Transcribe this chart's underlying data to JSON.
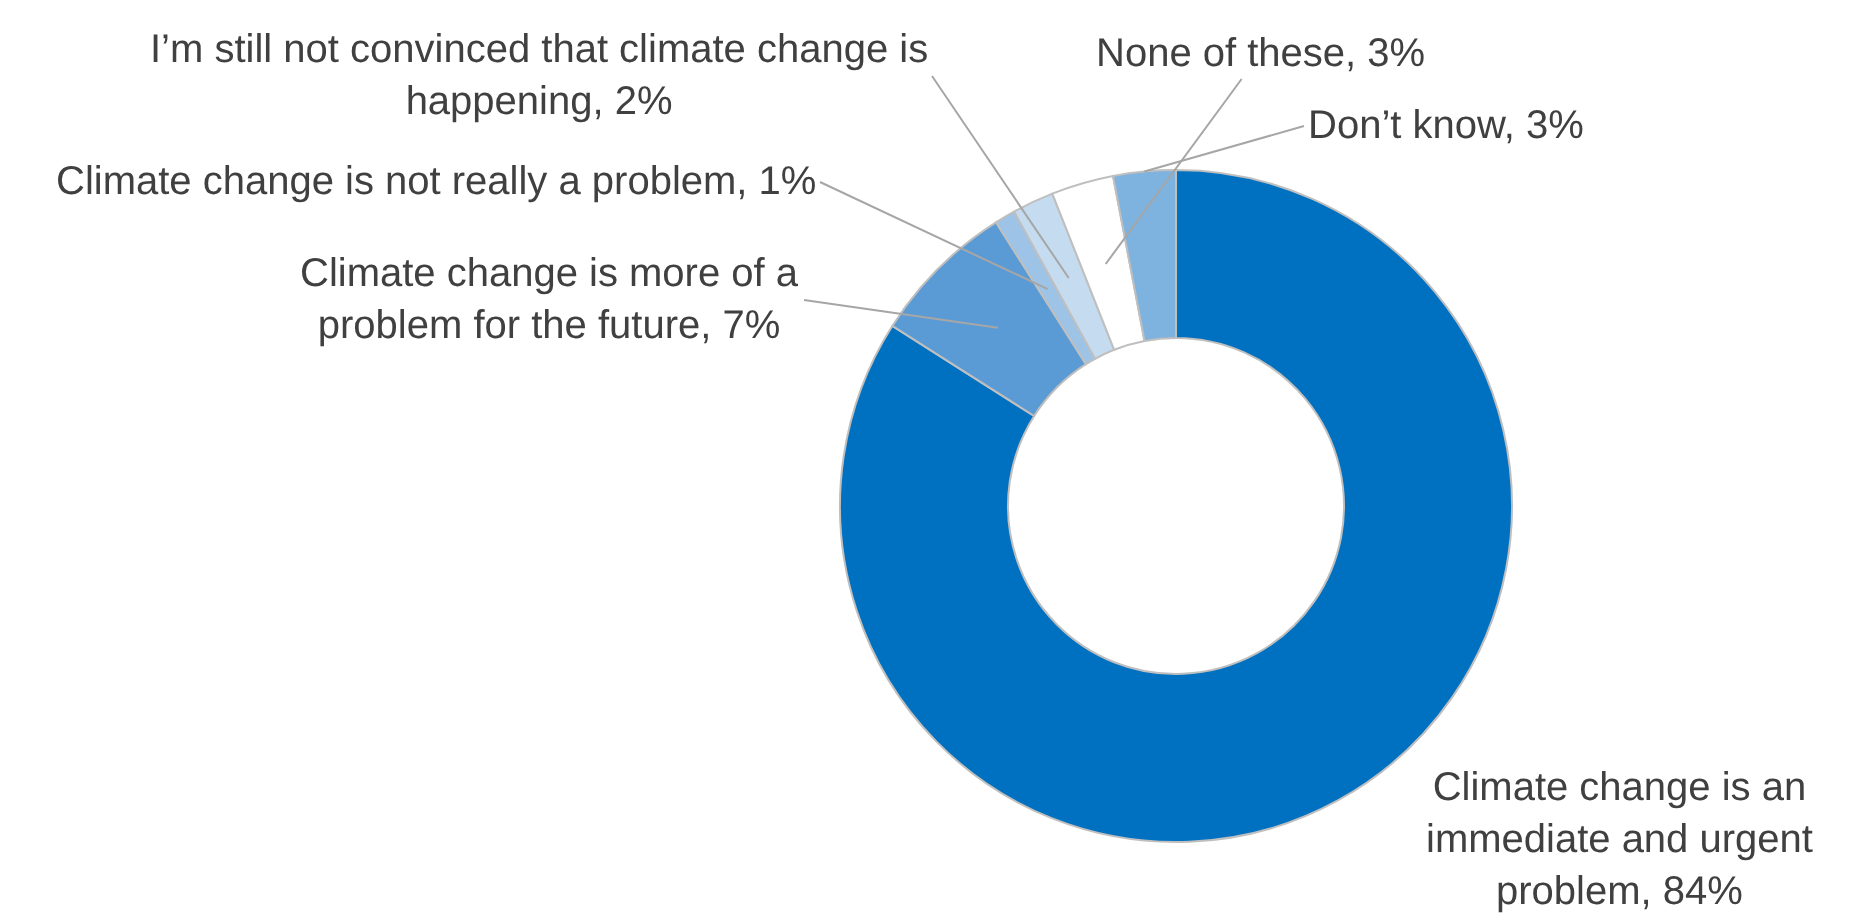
{
  "chart_data": {
    "type": "donut",
    "categories": [
      "Climate change is an immediate and urgent problem",
      "Climate change is more of a problem for the future",
      "Climate change is not really a problem",
      "I’m still not convinced that climate change is happening",
      "None of these",
      "Don’t know"
    ],
    "values": [
      84,
      7,
      1,
      2,
      3,
      3
    ],
    "colors": [
      "#0070c0",
      "#5b9bd5",
      "#9dc3e6",
      "#c5dcf0",
      "#ffffff",
      "#7eb2df"
    ],
    "value_labels": [
      "84%",
      "7%",
      "1%",
      "2%",
      "3%",
      "3%"
    ],
    "legend": false
  }
}
